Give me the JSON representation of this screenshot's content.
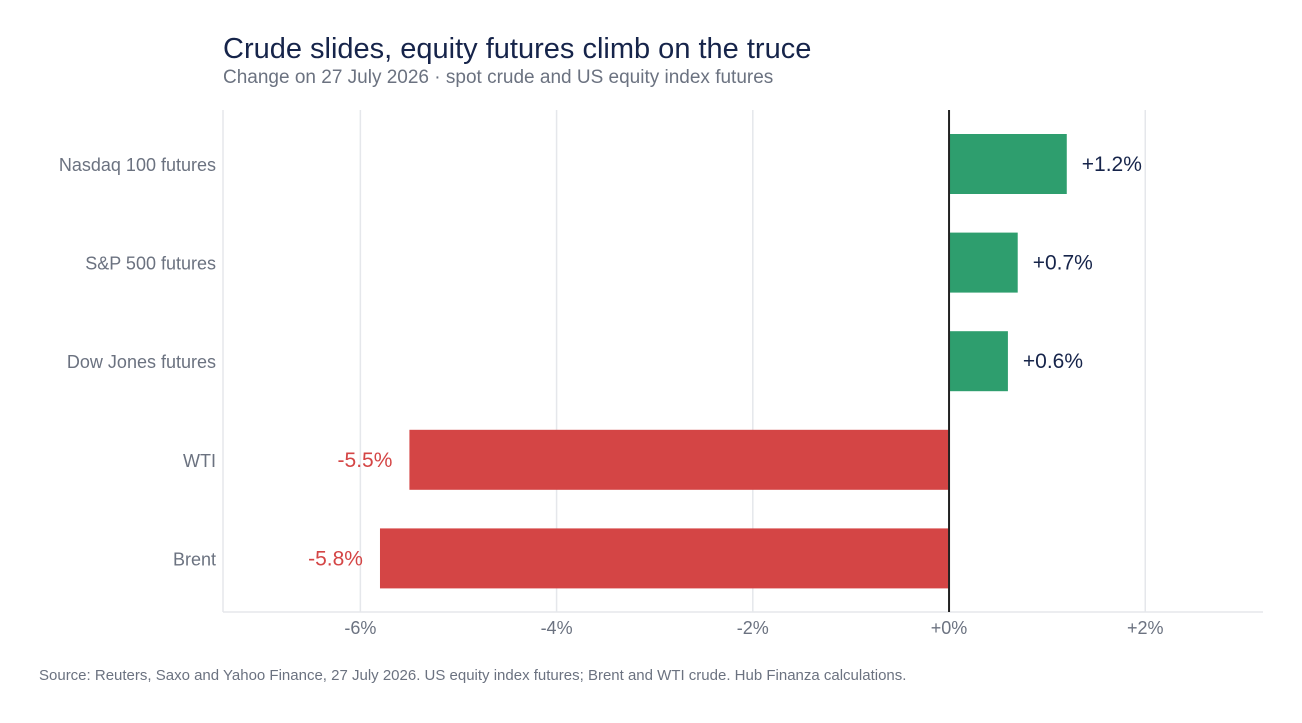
{
  "chart_data": {
    "type": "bar",
    "orientation": "horizontal",
    "title": "Crude slides, equity futures climb on the truce",
    "subtitle": "Change on 27 July 2026 · spot crude and US equity index futures",
    "categories": [
      "Nasdaq 100 futures",
      "S&P 500 futures",
      "Dow Jones futures",
      "WTI",
      "Brent"
    ],
    "values": [
      1.2,
      0.7,
      0.6,
      -5.5,
      -5.8
    ],
    "value_labels": [
      "+1.2%",
      "+0.7%",
      "+0.6%",
      "-5.5%",
      "-5.8%"
    ],
    "xlim": [
      -7.4,
      3.2
    ],
    "ticks": [
      -6,
      -4,
      -2,
      0,
      2
    ],
    "tick_labels": [
      "-6%",
      "-4%",
      "-2%",
      "+0%",
      "+2%"
    ],
    "grid": "vertical",
    "legend": "none",
    "colors": {
      "positive": "#2e9e6e",
      "negative": "#d44545",
      "positive_label": "#16244a",
      "negative_label": "#d44545",
      "grid": "#e5e7eb",
      "zero_line": "#222222",
      "text_muted": "#6b7280"
    },
    "source": "Source: Reuters, Saxo and Yahoo Finance, 27 July 2026. US equity index futures; Brent and WTI crude. Hub Finanza calculations."
  }
}
